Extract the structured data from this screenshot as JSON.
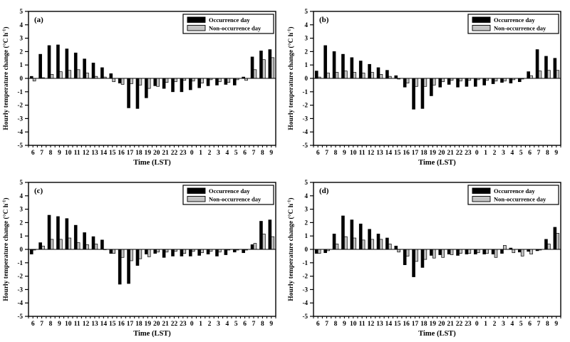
{
  "figure": {
    "background": "#ffffff",
    "legend": {
      "items": [
        {
          "label": "Occurrence day",
          "color": "#000000"
        },
        {
          "label": "Non-occurrence day",
          "color": "#c3c3c3"
        }
      ],
      "position": "top-right",
      "border_color": "#000000"
    },
    "axis_color": "#000000"
  },
  "chart_data": [
    {
      "type": "bar",
      "panel_label": "(a)",
      "xlabel": "Time (LST)",
      "ylabel": "Hourly temperature change (°C h⁻¹)",
      "ylabel_parts": {
        "prefix": "Hourly temperature change (°C h",
        "sup": "-1",
        "suffix": ")"
      },
      "ylim": [
        -5,
        5
      ],
      "ytick_step": 1,
      "grid": false,
      "legend_position": "top-right",
      "categories": [
        "6",
        "7",
        "8",
        "9",
        "10",
        "11",
        "12",
        "13",
        "14",
        "15",
        "16",
        "17",
        "18",
        "19",
        "20",
        "21",
        "22",
        "23",
        "0",
        "1",
        "2",
        "3",
        "4",
        "5",
        "6",
        "7",
        "8",
        "9"
      ],
      "series": [
        {
          "name": "Occurrence day",
          "color": "#000000",
          "values": [
            0.15,
            1.8,
            2.45,
            2.5,
            2.2,
            1.9,
            1.45,
            1.15,
            0.8,
            0.35,
            -0.35,
            -2.2,
            -2.25,
            -1.45,
            -0.55,
            -0.75,
            -1.0,
            -1.0,
            -0.85,
            -0.7,
            -0.55,
            -0.5,
            -0.45,
            -0.5,
            0.1,
            1.6,
            2.05,
            2.15
          ]
        },
        {
          "name": "Non-occurrence day",
          "color": "#c3c3c3",
          "values": [
            -0.2,
            0.05,
            0.3,
            0.5,
            0.6,
            0.65,
            0.4,
            0.15,
            0.1,
            -0.25,
            -0.45,
            -0.4,
            -0.5,
            -0.75,
            -0.6,
            -0.3,
            -0.25,
            -0.15,
            -0.2,
            -0.35,
            -0.1,
            -0.25,
            -0.3,
            -0.1,
            -0.15,
            0.65,
            1.4,
            1.55
          ]
        }
      ]
    },
    {
      "type": "bar",
      "panel_label": "(b)",
      "xlabel": "Time (LST)",
      "ylabel": "Hourly temperature change (°C h⁻¹)",
      "ylabel_parts": {
        "prefix": "Hourly temperature change (°C h",
        "sup": "-1",
        "suffix": ")"
      },
      "ylim": [
        -5,
        5
      ],
      "ytick_step": 1,
      "grid": false,
      "legend_position": "top-right",
      "categories": [
        "6",
        "7",
        "8",
        "9",
        "10",
        "11",
        "12",
        "13",
        "14",
        "15",
        "16",
        "17",
        "18",
        "19",
        "20",
        "21",
        "22",
        "23",
        "0",
        "1",
        "2",
        "3",
        "4",
        "5",
        "6",
        "7",
        "8",
        "9"
      ],
      "series": [
        {
          "name": "Occurrence day",
          "color": "#000000",
          "values": [
            0.55,
            2.45,
            2.0,
            1.8,
            1.55,
            1.3,
            1.05,
            0.8,
            0.6,
            0.2,
            -0.65,
            -2.3,
            -2.25,
            -1.3,
            -0.65,
            -0.45,
            -0.65,
            -0.6,
            -0.6,
            -0.5,
            -0.4,
            -0.3,
            -0.35,
            -0.25,
            0.5,
            2.15,
            1.65,
            1.5
          ]
        },
        {
          "name": "Non-occurrence day",
          "color": "#c3c3c3",
          "values": [
            0.1,
            0.4,
            0.45,
            0.55,
            0.45,
            0.4,
            0.45,
            0.3,
            0.15,
            -0.05,
            -0.35,
            -0.6,
            -0.6,
            -0.5,
            -0.25,
            -0.15,
            -0.2,
            -0.15,
            -0.1,
            -0.15,
            -0.2,
            -0.2,
            -0.1,
            -0.05,
            0.2,
            0.55,
            0.6,
            0.6
          ]
        }
      ]
    },
    {
      "type": "bar",
      "panel_label": "(c)",
      "xlabel": "Time (LST)",
      "ylabel": "Hourly temperature change (°C h⁻¹)",
      "ylabel_parts": {
        "prefix": "Hourly temperature change (°C h",
        "sup": "-1",
        "suffix": ")"
      },
      "ylim": [
        -5,
        5
      ],
      "ytick_step": 1,
      "grid": false,
      "legend_position": "top-right",
      "categories": [
        "6",
        "7",
        "8",
        "9",
        "10",
        "11",
        "12",
        "13",
        "14",
        "15",
        "16",
        "17",
        "18",
        "19",
        "20",
        "21",
        "22",
        "23",
        "0",
        "1",
        "2",
        "3",
        "4",
        "5",
        "6",
        "7",
        "8",
        "9"
      ],
      "series": [
        {
          "name": "Occurrence day",
          "color": "#000000",
          "values": [
            -0.35,
            0.5,
            2.55,
            2.45,
            2.3,
            1.8,
            1.25,
            0.95,
            0.7,
            -0.3,
            -2.6,
            -2.55,
            -1.2,
            -0.35,
            -0.3,
            -0.6,
            -0.5,
            -0.5,
            -0.5,
            -0.45,
            -0.35,
            -0.5,
            -0.4,
            -0.2,
            -0.25,
            0.35,
            2.1,
            2.2
          ]
        },
        {
          "name": "Non-occurrence day",
          "color": "#c3c3c3",
          "values": [
            -0.05,
            0.25,
            0.75,
            0.75,
            0.85,
            0.5,
            0.35,
            0.4,
            0.0,
            -0.3,
            -0.6,
            -0.85,
            -0.7,
            -0.55,
            -0.2,
            -0.2,
            -0.15,
            -0.3,
            -0.15,
            -0.25,
            -0.15,
            -0.2,
            -0.05,
            -0.05,
            -0.05,
            0.45,
            1.15,
            0.95
          ]
        }
      ]
    },
    {
      "type": "bar",
      "panel_label": "(d)",
      "xlabel": "Time (LST)",
      "ylabel": "Hourly temperature change (°C h⁻¹)",
      "ylabel_parts": {
        "prefix": "Hourly temperature change (°C h",
        "sup": "-1",
        "suffix": ")"
      },
      "ylim": [
        -5,
        5
      ],
      "ytick_step": 1,
      "grid": false,
      "legend_position": "top-right",
      "categories": [
        "6",
        "7",
        "8",
        "9",
        "10",
        "11",
        "12",
        "13",
        "14",
        "15",
        "16",
        "17",
        "18",
        "19",
        "20",
        "21",
        "22",
        "23",
        "0",
        "1",
        "2",
        "3",
        "4",
        "5",
        "6",
        "7",
        "8",
        "9"
      ],
      "series": [
        {
          "name": "Occurrence day",
          "color": "#000000",
          "values": [
            -0.3,
            -0.25,
            1.15,
            2.5,
            2.2,
            1.9,
            1.5,
            1.15,
            0.85,
            0.25,
            -1.15,
            -2.05,
            -1.35,
            -0.45,
            -0.4,
            -0.35,
            -0.45,
            -0.35,
            -0.35,
            -0.35,
            -0.35,
            -0.3,
            0.1,
            -0.2,
            -0.15,
            -0.1,
            0.75,
            1.65
          ]
        },
        {
          "name": "Non-occurrence day",
          "color": "#c3c3c3",
          "values": [
            -0.3,
            -0.1,
            0.4,
            0.95,
            0.85,
            0.7,
            0.75,
            0.75,
            0.4,
            -0.2,
            -0.5,
            -0.9,
            -0.75,
            -0.65,
            -0.6,
            -0.4,
            -0.3,
            -0.3,
            -0.25,
            -0.3,
            -0.6,
            0.3,
            -0.25,
            -0.5,
            -0.35,
            -0.05,
            0.4,
            1.2
          ]
        }
      ]
    }
  ]
}
